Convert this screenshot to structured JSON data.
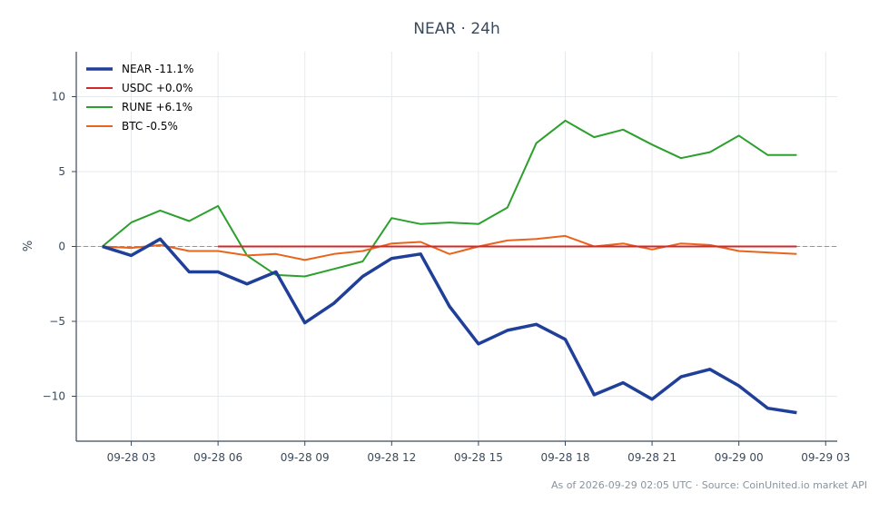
{
  "chart_data": {
    "type": "line",
    "title": "NEAR · 24h",
    "xlabel": "",
    "ylabel": "%",
    "x_ticks": [
      "09-28 03",
      "09-28 06",
      "09-28 09",
      "09-28 12",
      "09-28 15",
      "09-28 18",
      "09-28 21",
      "09-29 00",
      "09-29 03"
    ],
    "y_ticks": [
      10,
      5,
      0,
      -5,
      -10
    ],
    "ylim": [
      -13,
      13
    ],
    "xlim_hours": [
      1.1,
      27.4
    ],
    "grid": true,
    "zero_reference_line": true,
    "legend_position": "top-left",
    "series": [
      {
        "name": "NEAR -11.1%",
        "color": "#1f3f99",
        "x": [
          2,
          3,
          4,
          5,
          6,
          7,
          8,
          9,
          10,
          11,
          12,
          13,
          14,
          15,
          16,
          17,
          18,
          19,
          20,
          21,
          22,
          23,
          24,
          25,
          26
        ],
        "values": [
          0.0,
          -0.6,
          0.5,
          -1.7,
          -1.7,
          -2.5,
          -1.7,
          -5.1,
          -3.8,
          -2.0,
          -0.8,
          -0.5,
          -4.0,
          -6.5,
          -5.6,
          -5.2,
          -6.2,
          -9.9,
          -9.1,
          -10.2,
          -8.7,
          -8.2,
          -9.3,
          -10.8,
          -11.1
        ]
      },
      {
        "name": "USDC +0.0%",
        "color": "#d62728",
        "x": [
          6,
          26
        ],
        "values": [
          0.0,
          0.0
        ]
      },
      {
        "name": "RUNE +6.1%",
        "color": "#2ca02c",
        "x": [
          2,
          3,
          4,
          5,
          6,
          7,
          8,
          9,
          10,
          11,
          12,
          13,
          14,
          15,
          16,
          17,
          18,
          19,
          20,
          21,
          22,
          23,
          24,
          25,
          26
        ],
        "values": [
          0.0,
          1.6,
          2.4,
          1.7,
          2.7,
          -0.6,
          -1.9,
          -2.0,
          -1.5,
          -1.0,
          1.9,
          1.5,
          1.6,
          1.5,
          2.6,
          6.9,
          8.4,
          7.3,
          7.8,
          6.8,
          5.9,
          6.3,
          7.4,
          6.1,
          6.1
        ]
      },
      {
        "name": "BTC -0.5%",
        "color": "#e8641b",
        "x": [
          2,
          3,
          4,
          5,
          6,
          7,
          8,
          9,
          10,
          11,
          12,
          13,
          14,
          15,
          16,
          17,
          18,
          19,
          20,
          21,
          22,
          23,
          24,
          25,
          26
        ],
        "values": [
          0.0,
          -0.1,
          0.1,
          -0.3,
          -0.3,
          -0.6,
          -0.5,
          -0.9,
          -0.5,
          -0.3,
          0.2,
          0.3,
          -0.5,
          0.0,
          0.4,
          0.5,
          0.7,
          0.0,
          0.2,
          -0.2,
          0.2,
          0.1,
          -0.3,
          -0.4,
          -0.5
        ]
      }
    ],
    "footer": "As of 2026-09-29 02:05 UTC · Source: CoinUnited.io market API"
  }
}
